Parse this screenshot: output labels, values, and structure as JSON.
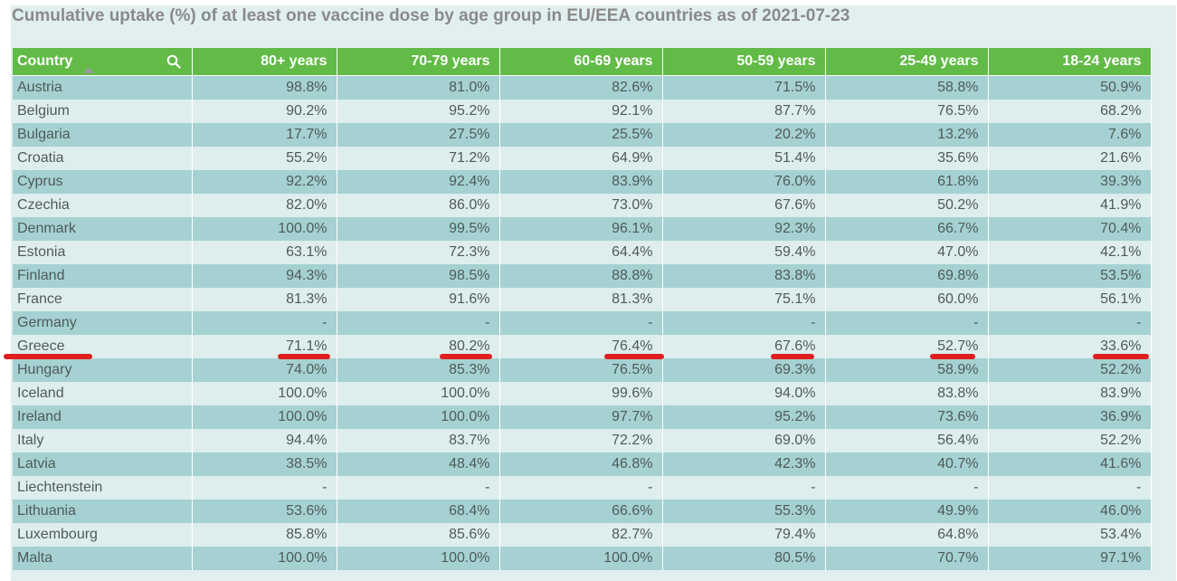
{
  "title": "Cumulative uptake (%) of at least one vaccine dose by age group in EU/EEA countries as of 2021-07-23",
  "columns": [
    "Country",
    "80+ years",
    "70-79 years",
    "60-69 years",
    "50-59 years",
    "25-49 years",
    "18-24 years"
  ],
  "rows": [
    {
      "country": "Austria",
      "values": [
        "98.8%",
        "81.0%",
        "82.6%",
        "71.5%",
        "58.8%",
        "50.9%"
      ]
    },
    {
      "country": "Belgium",
      "values": [
        "90.2%",
        "95.2%",
        "92.1%",
        "87.7%",
        "76.5%",
        "68.2%"
      ]
    },
    {
      "country": "Bulgaria",
      "values": [
        "17.7%",
        "27.5%",
        "25.5%",
        "20.2%",
        "13.2%",
        "7.6%"
      ]
    },
    {
      "country": "Croatia",
      "values": [
        "55.2%",
        "71.2%",
        "64.9%",
        "51.4%",
        "35.6%",
        "21.6%"
      ]
    },
    {
      "country": "Cyprus",
      "values": [
        "92.2%",
        "92.4%",
        "83.9%",
        "76.0%",
        "61.8%",
        "39.3%"
      ]
    },
    {
      "country": "Czechia",
      "values": [
        "82.0%",
        "86.0%",
        "73.0%",
        "67.6%",
        "50.2%",
        "41.9%"
      ]
    },
    {
      "country": "Denmark",
      "values": [
        "100.0%",
        "99.5%",
        "96.1%",
        "92.3%",
        "66.7%",
        "70.4%"
      ]
    },
    {
      "country": "Estonia",
      "values": [
        "63.1%",
        "72.3%",
        "64.4%",
        "59.4%",
        "47.0%",
        "42.1%"
      ]
    },
    {
      "country": "Finland",
      "values": [
        "94.3%",
        "98.5%",
        "88.8%",
        "83.8%",
        "69.8%",
        "53.5%"
      ]
    },
    {
      "country": "France",
      "values": [
        "81.3%",
        "91.6%",
        "81.3%",
        "75.1%",
        "60.0%",
        "56.1%"
      ]
    },
    {
      "country": "Germany",
      "values": [
        "-",
        "-",
        "-",
        "-",
        "-",
        "-"
      ]
    },
    {
      "country": "Greece",
      "values": [
        "71.1%",
        "80.2%",
        "76.4%",
        "67.6%",
        "52.7%",
        "33.6%"
      ]
    },
    {
      "country": "Hungary",
      "values": [
        "74.0%",
        "85.3%",
        "76.5%",
        "69.3%",
        "58.9%",
        "52.2%"
      ]
    },
    {
      "country": "Iceland",
      "values": [
        "100.0%",
        "100.0%",
        "99.6%",
        "94.0%",
        "83.8%",
        "83.9%"
      ]
    },
    {
      "country": "Ireland",
      "values": [
        "100.0%",
        "100.0%",
        "97.7%",
        "95.2%",
        "73.6%",
        "36.9%"
      ]
    },
    {
      "country": "Italy",
      "values": [
        "94.4%",
        "83.7%",
        "72.2%",
        "69.0%",
        "56.4%",
        "52.2%"
      ]
    },
    {
      "country": "Latvia",
      "values": [
        "38.5%",
        "48.4%",
        "46.8%",
        "42.3%",
        "40.7%",
        "41.6%"
      ]
    },
    {
      "country": "Liechtenstein",
      "values": [
        "-",
        "-",
        "-",
        "-",
        "-",
        "-"
      ]
    },
    {
      "country": "Lithuania",
      "values": [
        "53.6%",
        "68.4%",
        "66.6%",
        "55.3%",
        "49.9%",
        "46.0%"
      ]
    },
    {
      "country": "Luxembourg",
      "values": [
        "85.8%",
        "85.6%",
        "82.7%",
        "79.4%",
        "64.8%",
        "53.4%"
      ]
    },
    {
      "country": "Malta",
      "values": [
        "100.0%",
        "100.0%",
        "100.0%",
        "80.5%",
        "70.7%",
        "97.1%"
      ]
    }
  ],
  "icons": {
    "search": "search-icon",
    "sort": "sort-ascending-icon"
  },
  "colors": {
    "header": "#62bb47",
    "row_odd": "#a5d1d2",
    "row_even": "#ddeeed",
    "highlight": "#e01e1e",
    "title": "#8a8a8a"
  }
}
